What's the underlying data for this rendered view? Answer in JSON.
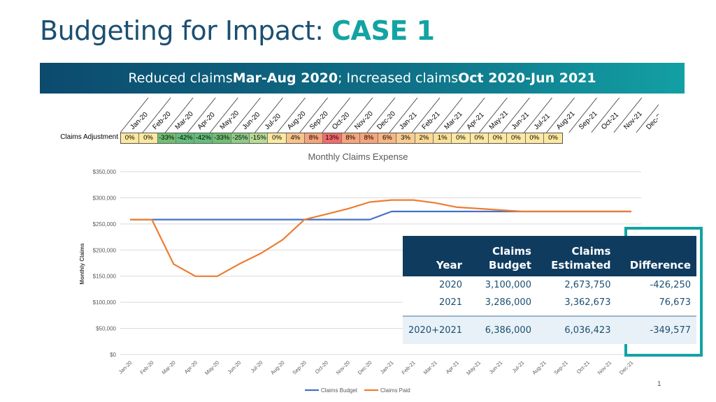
{
  "title": {
    "prefix": "Budgeting for Impact: ",
    "case": "CASE 1"
  },
  "banner": {
    "t1": "Reduced claims ",
    "b1": "Mar-Aug 2020",
    "t2": "; Increased claims ",
    "b2": "Oct 2020-Jun 2021"
  },
  "adjustment": {
    "label": "Claims Adjustment",
    "values": [
      "0%",
      "0%",
      "-33%",
      "-42%",
      "-42%",
      "-33%",
      "-25%",
      "-15%",
      "0%",
      "4%",
      "8%",
      "13%",
      "8%",
      "8%",
      "6%",
      "3%",
      "2%",
      "1%",
      "0%",
      "0%",
      "0%",
      "0%",
      "0%",
      "0%"
    ],
    "colors": [
      "#fce8a0",
      "#fce8a0",
      "#6fbf73",
      "#63be7b",
      "#63be7b",
      "#6fbf73",
      "#8dcc86",
      "#b7dd95",
      "#fce8a0",
      "#f9c38a",
      "#f7a47a",
      "#f26b6b",
      "#f7a47a",
      "#f7a47a",
      "#f8b684",
      "#facd8f",
      "#fbd893",
      "#fbe097",
      "#fce8a0",
      "#fce8a0",
      "#fce8a0",
      "#fce8a0",
      "#fce8a0",
      "#fce8a0"
    ]
  },
  "chart_data": {
    "type": "line",
    "title": "Monthly Claims Expense",
    "xlabel": "",
    "ylabel": "Monthly Claims",
    "ylim": [
      0,
      350000
    ],
    "yticks": [
      "$0",
      "$50,000",
      "$100,000",
      "$150,000",
      "$200,000",
      "$250,000",
      "$300,000",
      "$350,000"
    ],
    "categories": [
      "Jan-20",
      "Feb-20",
      "Mar-20",
      "Apr-20",
      "May-20",
      "Jun-20",
      "Jul-20",
      "Aug-20",
      "Sep-20",
      "Oct-20",
      "Nov-20",
      "Dec-20",
      "Jan-21",
      "Feb-21",
      "Mar-21",
      "Apr-21",
      "May-21",
      "Jun-21",
      "Jul-21",
      "Aug-21",
      "Sep-21",
      "Oct-21",
      "Nov-21",
      "Dec-21"
    ],
    "series": [
      {
        "name": "Claims Budget",
        "color": "#4472c4",
        "values": [
          258333,
          258333,
          258333,
          258333,
          258333,
          258333,
          258333,
          258333,
          258333,
          258333,
          258333,
          258333,
          273833,
          273833,
          273833,
          273833,
          273833,
          273833,
          273833,
          273833,
          273833,
          273833,
          273833,
          273833
        ]
      },
      {
        "name": "Claims Paid",
        "color": "#ed7d31",
        "values": [
          258333,
          258333,
          173083,
          149833,
          149833,
          173083,
          193750,
          219583,
          258333,
          268666,
          279000,
          291916,
          295739,
          295739,
          290262,
          282046,
          279308,
          276571,
          273833,
          273833,
          273833,
          273833,
          273833,
          273833
        ]
      }
    ],
    "legend": "bottom",
    "grid": true
  },
  "summary_table": {
    "headers": [
      "Year",
      "Claims Budget",
      "Claims Estimated",
      "Difference"
    ],
    "rows": [
      [
        "2020",
        "3,100,000",
        "2,673,750",
        "-426,250"
      ],
      [
        "2021",
        "3,286,000",
        "3,362,673",
        "76,673"
      ]
    ],
    "total": [
      "2020+2021",
      "6,386,000",
      "6,036,423",
      "-349,577"
    ]
  },
  "page_number": "1"
}
